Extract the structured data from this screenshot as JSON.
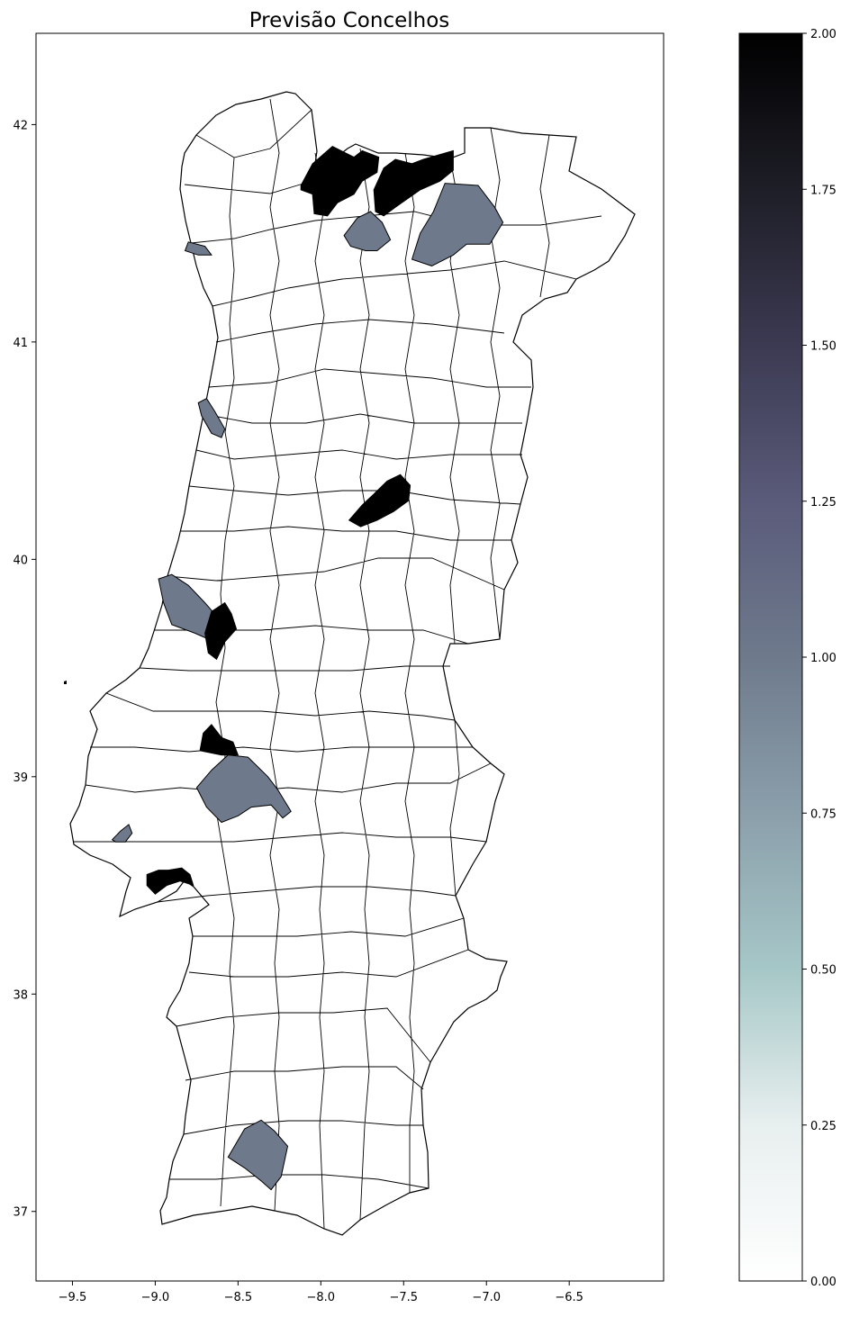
{
  "map": {
    "title": "Previsão Concelhos",
    "x_ticks": [
      "−9.5",
      "−9.0",
      "−8.5",
      "−8.0",
      "−7.5",
      "−7.0",
      "−6.5"
    ],
    "y_ticks": [
      "42",
      "41",
      "40",
      "39",
      "38",
      "37"
    ],
    "x_tick_values": [
      -9.5,
      -9.0,
      -8.5,
      -8.0,
      -7.5,
      -7.0,
      -6.5
    ],
    "y_tick_values": [
      42,
      41,
      40,
      39,
      38,
      37
    ],
    "xlim": [
      -9.72,
      -5.93
    ],
    "ylim": [
      36.68,
      42.42
    ],
    "class_colors": {
      "0": "#ffffff",
      "1": "#6e7a8c",
      "2": "#000000"
    },
    "highlighted_regions": [
      {
        "id": "north-1",
        "value": 2,
        "outline": [
          [
            -8.12,
            41.72
          ],
          [
            -8.05,
            41.82
          ],
          [
            -7.93,
            41.9
          ],
          [
            -7.8,
            41.85
          ],
          [
            -7.75,
            41.88
          ],
          [
            -7.65,
            41.85
          ],
          [
            -7.66,
            41.78
          ],
          [
            -7.75,
            41.74
          ],
          [
            -7.8,
            41.68
          ],
          [
            -7.9,
            41.64
          ],
          [
            -7.96,
            41.58
          ],
          [
            -8.04,
            41.59
          ],
          [
            -8.05,
            41.68
          ],
          [
            -8.12,
            41.7
          ]
        ]
      },
      {
        "id": "north-2",
        "value": 2,
        "outline": [
          [
            -7.68,
            41.7
          ],
          [
            -7.62,
            41.8
          ],
          [
            -7.55,
            41.84
          ],
          [
            -7.45,
            41.82
          ],
          [
            -7.38,
            41.84
          ],
          [
            -7.2,
            41.88
          ],
          [
            -7.2,
            41.79
          ],
          [
            -7.28,
            41.74
          ],
          [
            -7.4,
            41.7
          ],
          [
            -7.55,
            41.62
          ],
          [
            -7.62,
            41.58
          ],
          [
            -7.67,
            41.6
          ]
        ]
      },
      {
        "id": "north-3",
        "value": 1,
        "outline": [
          [
            -7.86,
            41.49
          ],
          [
            -7.78,
            41.57
          ],
          [
            -7.7,
            41.6
          ],
          [
            -7.63,
            41.55
          ],
          [
            -7.58,
            41.47
          ],
          [
            -7.66,
            41.42
          ],
          [
            -7.73,
            41.42
          ],
          [
            -7.82,
            41.44
          ]
        ]
      },
      {
        "id": "north-4",
        "value": 1,
        "outline": [
          [
            -7.45,
            41.38
          ],
          [
            -7.4,
            41.5
          ],
          [
            -7.32,
            41.6
          ],
          [
            -7.25,
            41.73
          ],
          [
            -7.05,
            41.72
          ],
          [
            -6.95,
            41.62
          ],
          [
            -6.9,
            41.55
          ],
          [
            -6.98,
            41.45
          ],
          [
            -7.12,
            41.45
          ],
          [
            -7.2,
            41.4
          ],
          [
            -7.33,
            41.35
          ]
        ]
      },
      {
        "id": "coast-1",
        "value": 1,
        "outline": [
          [
            -8.8,
            41.46
          ],
          [
            -8.7,
            41.44
          ],
          [
            -8.66,
            41.4
          ],
          [
            -8.74,
            41.4
          ],
          [
            -8.82,
            41.42
          ]
        ]
      },
      {
        "id": "coast-2",
        "value": 1,
        "outline": [
          [
            -8.74,
            40.72
          ],
          [
            -8.69,
            40.74
          ],
          [
            -8.64,
            40.68
          ],
          [
            -8.58,
            40.6
          ],
          [
            -8.6,
            40.56
          ],
          [
            -8.66,
            40.58
          ],
          [
            -8.72,
            40.66
          ]
        ]
      },
      {
        "id": "centre-1",
        "value": 2,
        "outline": [
          [
            -7.83,
            40.18
          ],
          [
            -7.75,
            40.25
          ],
          [
            -7.68,
            40.3
          ],
          [
            -7.6,
            40.36
          ],
          [
            -7.52,
            40.39
          ],
          [
            -7.46,
            40.34
          ],
          [
            -7.47,
            40.27
          ],
          [
            -7.56,
            40.22
          ],
          [
            -7.66,
            40.18
          ],
          [
            -7.76,
            40.15
          ]
        ]
      },
      {
        "id": "centre-2",
        "value": 1,
        "outline": [
          [
            -8.98,
            39.91
          ],
          [
            -8.9,
            39.93
          ],
          [
            -8.8,
            39.88
          ],
          [
            -8.7,
            39.8
          ],
          [
            -8.62,
            39.73
          ],
          [
            -8.64,
            39.62
          ],
          [
            -8.76,
            39.66
          ],
          [
            -8.9,
            39.7
          ],
          [
            -8.95,
            39.8
          ]
        ]
      },
      {
        "id": "centre-3",
        "value": 2,
        "outline": [
          [
            -8.66,
            39.76
          ],
          [
            -8.58,
            39.8
          ],
          [
            -8.54,
            39.75
          ],
          [
            -8.51,
            39.68
          ],
          [
            -8.58,
            39.62
          ],
          [
            -8.63,
            39.54
          ],
          [
            -8.68,
            39.57
          ],
          [
            -8.7,
            39.66
          ]
        ]
      },
      {
        "id": "centre-4",
        "value": 2,
        "outline": [
          [
            -8.73,
            39.12
          ],
          [
            -8.71,
            39.2
          ],
          [
            -8.66,
            39.24
          ],
          [
            -8.6,
            39.18
          ],
          [
            -8.53,
            39.16
          ],
          [
            -8.5,
            39.1
          ],
          [
            -8.6,
            39.1
          ]
        ]
      },
      {
        "id": "centre-5",
        "value": 1,
        "outline": [
          [
            -8.75,
            38.95
          ],
          [
            -8.66,
            39.03
          ],
          [
            -8.56,
            39.1
          ],
          [
            -8.44,
            39.09
          ],
          [
            -8.32,
            39.0
          ],
          [
            -8.26,
            38.94
          ],
          [
            -8.18,
            38.84
          ],
          [
            -8.23,
            38.81
          ],
          [
            -8.3,
            38.87
          ],
          [
            -8.42,
            38.86
          ],
          [
            -8.5,
            38.82
          ],
          [
            -8.6,
            38.79
          ],
          [
            -8.69,
            38.86
          ]
        ]
      },
      {
        "id": "lisbon-1",
        "value": 1,
        "outline": [
          [
            -9.26,
            38.71
          ],
          [
            -9.21,
            38.75
          ],
          [
            -9.16,
            38.78
          ],
          [
            -9.14,
            38.74
          ],
          [
            -9.18,
            38.7
          ],
          [
            -9.24,
            38.7
          ]
        ]
      },
      {
        "id": "setubal-1",
        "value": 2,
        "outline": [
          [
            -9.05,
            38.55
          ],
          [
            -8.98,
            38.57
          ],
          [
            -8.92,
            38.57
          ],
          [
            -8.84,
            38.58
          ],
          [
            -8.79,
            38.55
          ],
          [
            -8.77,
            38.5
          ],
          [
            -8.85,
            38.52
          ],
          [
            -8.93,
            38.5
          ],
          [
            -9.0,
            38.46
          ],
          [
            -9.05,
            38.5
          ]
        ]
      },
      {
        "id": "algarve-1",
        "value": 1,
        "outline": [
          [
            -8.56,
            37.25
          ],
          [
            -8.46,
            37.38
          ],
          [
            -8.36,
            37.42
          ],
          [
            -8.28,
            37.37
          ],
          [
            -8.2,
            37.3
          ],
          [
            -8.24,
            37.16
          ],
          [
            -8.3,
            37.1
          ],
          [
            -8.36,
            37.14
          ],
          [
            -8.46,
            37.2
          ]
        ]
      }
    ]
  },
  "colorbar": {
    "ticks": [
      "0.00",
      "0.25",
      "0.50",
      "0.75",
      "1.00",
      "1.25",
      "1.50",
      "1.75",
      "2.00"
    ],
    "tick_values": [
      0,
      0.25,
      0.5,
      0.75,
      1.0,
      1.25,
      1.5,
      1.75,
      2.0
    ],
    "vmin": 0,
    "vmax": 2,
    "colormap": "bone_r",
    "gradient_stops": [
      "#ffffff",
      "#e8efef",
      "#a6c7c7",
      "#8b9fab",
      "#6e7a8c",
      "#5a5b7a",
      "#3c3a52",
      "#1e1e27",
      "#000000"
    ]
  }
}
